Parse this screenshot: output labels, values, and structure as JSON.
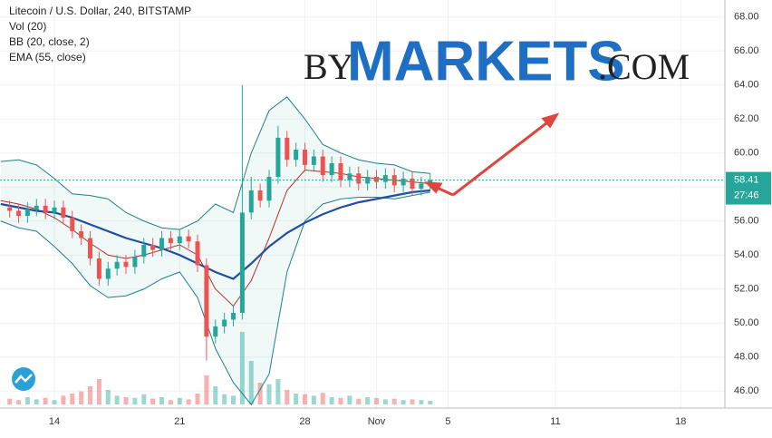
{
  "chart_data": {
    "type": "candlestick",
    "title": "Litecoin / U.S. Dollar, 240, BITSTAMP",
    "indicators": [
      "Vol (20)",
      "BB (20, close, 2)",
      "EMA (55, close)"
    ],
    "watermark": {
      "prefix": "by",
      "brand": "MARKETS",
      "suffix": ".COM"
    },
    "xlim": [
      10.96,
      51.47
    ],
    "xticks": [
      14,
      21,
      28,
      {
        "value": 32,
        "label": "Nov"
      },
      {
        "value": 36,
        "label": "5"
      },
      {
        "value": 42,
        "label": "11"
      },
      {
        "value": 49,
        "label": "18"
      }
    ],
    "ylim": [
      45.0,
      69.0
    ],
    "yticks": [
      {
        "value": 46,
        "label": "46.00"
      },
      {
        "value": 48,
        "label": "48.00"
      },
      {
        "value": 50,
        "label": "50.00"
      },
      {
        "value": 52,
        "label": "52.00"
      },
      {
        "value": 54,
        "label": "54.00"
      },
      {
        "value": 56,
        "label": "56.00"
      },
      {
        "value": 58,
        "label": "58.00"
      },
      {
        "value": 60,
        "label": "60.00"
      },
      {
        "value": 62,
        "label": "62.00"
      },
      {
        "value": 64,
        "label": "64.00"
      },
      {
        "value": 66,
        "label": "66.00"
      },
      {
        "value": 68,
        "label": "68.00"
      }
    ],
    "grid": true,
    "up_color": "#26a69a",
    "down_color": "#ef5350",
    "last_price": 58.41,
    "countdown": "27:46",
    "candles": {
      "x": [
        11.5,
        12,
        12.5,
        13,
        13.5,
        14,
        14.5,
        15,
        15.5,
        16,
        16.5,
        17,
        17.5,
        18,
        18.5,
        19,
        19.5,
        20,
        20.5,
        21,
        21.5,
        22,
        22.5,
        23,
        23.5,
        24,
        24.5,
        25,
        25.5,
        26,
        26.5,
        27,
        27.5,
        28,
        28.5,
        29,
        29.5,
        30,
        30.5,
        31,
        31.5,
        32,
        32.5,
        33,
        33.5,
        34,
        34.5,
        35
      ],
      "open": [
        56.8,
        56.6,
        56.3,
        56.7,
        56.9,
        56.5,
        56.8,
        56.2,
        55.4,
        55.0,
        53.8,
        52.6,
        53.2,
        53.6,
        53.3,
        53.9,
        54.6,
        54.3,
        55.0,
        54.7,
        55.1,
        54.8,
        53.4,
        49.2,
        49.8,
        50.2,
        50.6,
        56.5,
        57.8,
        57.2,
        58.6,
        60.9,
        59.6,
        60.2,
        59.3,
        59.8,
        58.7,
        59.4,
        58.4,
        58.8,
        58.2,
        58.6,
        58.3,
        58.7,
        58.1,
        58.5,
        57.9,
        58.2
      ],
      "high": [
        57.2,
        57.0,
        57.1,
        57.3,
        57.3,
        57.2,
        57.2,
        56.6,
        55.8,
        55.4,
        54.2,
        53.6,
        54.0,
        54.0,
        54.3,
        55.0,
        55.0,
        55.4,
        55.4,
        55.5,
        55.5,
        55.2,
        53.8,
        50.2,
        50.6,
        51.0,
        64.0,
        58.6,
        58.2,
        59.0,
        61.6,
        61.3,
        60.6,
        60.6,
        60.2,
        60.2,
        59.8,
        59.8,
        59.2,
        59.2,
        59.0,
        59.0,
        59.1,
        59.1,
        58.9,
        58.9,
        58.6,
        58.8
      ],
      "low": [
        56.2,
        55.9,
        55.9,
        56.3,
        56.1,
        56.1,
        55.8,
        55.0,
        54.6,
        53.4,
        52.2,
        52.2,
        52.8,
        52.9,
        52.9,
        53.5,
        53.9,
        53.9,
        54.3,
        54.3,
        54.4,
        53.0,
        47.8,
        48.8,
        49.4,
        49.8,
        50.2,
        56.1,
        56.8,
        56.8,
        58.2,
        59.2,
        59.2,
        58.9,
        58.9,
        58.3,
        58.3,
        58.0,
        58.0,
        57.8,
        57.8,
        57.9,
        57.9,
        57.7,
        57.7,
        57.5,
        57.5,
        57.8
      ],
      "close": [
        56.6,
        56.3,
        56.7,
        56.9,
        56.5,
        56.8,
        56.2,
        55.4,
        55.0,
        53.8,
        52.6,
        53.2,
        53.6,
        53.3,
        53.9,
        54.6,
        54.3,
        55.0,
        54.7,
        55.1,
        54.8,
        53.4,
        49.2,
        49.8,
        50.2,
        50.6,
        56.5,
        57.8,
        57.2,
        58.6,
        60.9,
        59.6,
        60.2,
        59.3,
        59.8,
        58.7,
        59.4,
        58.4,
        58.8,
        58.2,
        58.6,
        58.3,
        58.7,
        58.1,
        58.5,
        57.9,
        58.2,
        58.41
      ],
      "volume": [
        8,
        6,
        10,
        7,
        9,
        6,
        12,
        15,
        18,
        25,
        35,
        20,
        12,
        10,
        9,
        14,
        8,
        10,
        6,
        9,
        7,
        15,
        40,
        25,
        14,
        12,
        100,
        60,
        30,
        28,
        35,
        20,
        15,
        14,
        12,
        16,
        10,
        9,
        12,
        8,
        10,
        9,
        7,
        8,
        6,
        7,
        6,
        5
      ]
    },
    "volume_lim": [
      0,
      100
    ],
    "lines_x": [
      11,
      12,
      13,
      14,
      15,
      16,
      17,
      18,
      19,
      20,
      21,
      22,
      23,
      24,
      25,
      26,
      27,
      28,
      29,
      30,
      31,
      32,
      33,
      34,
      35
    ],
    "lines": [
      {
        "name": "BB upper",
        "color": "#1f7f86",
        "values": [
          59.5,
          59.6,
          59.3,
          58.5,
          57.6,
          57.5,
          57.3,
          56.5,
          56.0,
          55.6,
          55.5,
          56.0,
          57.0,
          56.5,
          60.0,
          62.5,
          63.3,
          62.0,
          60.5,
          60.0,
          59.6,
          59.4,
          59.3,
          58.9,
          58.8
        ]
      },
      {
        "name": "BB lower",
        "color": "#1f7f86",
        "values": [
          56.0,
          55.6,
          55.4,
          54.5,
          53.5,
          52.2,
          51.5,
          51.6,
          52.0,
          52.6,
          53.0,
          51.5,
          48.5,
          46.5,
          45.2,
          47.0,
          53.0,
          56.0,
          57.0,
          57.3,
          57.4,
          57.4,
          57.3,
          57.5,
          57.7
        ]
      },
      {
        "name": "BB basis",
        "color": "#b2302d",
        "values": [
          57.2,
          57.0,
          56.7,
          56.2,
          55.5,
          54.7,
          54.0,
          53.8,
          54.0,
          54.3,
          54.6,
          54.0,
          52.0,
          51.0,
          52.5,
          55.0,
          57.8,
          59.0,
          58.9,
          58.8,
          58.6,
          58.5,
          58.4,
          58.3,
          58.2
        ]
      },
      {
        "name": "EMA",
        "color": "#1e4fa0",
        "values": [
          57.0,
          56.8,
          56.6,
          56.5,
          56.2,
          55.8,
          55.4,
          55.0,
          54.7,
          54.4,
          54.0,
          53.5,
          53.0,
          52.6,
          53.5,
          54.5,
          55.3,
          55.9,
          56.4,
          56.8,
          57.1,
          57.3,
          57.5,
          57.7,
          57.8
        ]
      }
    ]
  }
}
